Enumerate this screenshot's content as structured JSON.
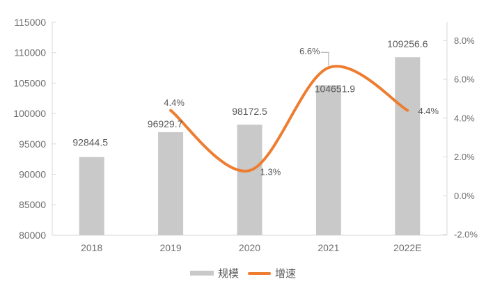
{
  "chart_data": {
    "type": "combo-bar-line",
    "categories": [
      "2018",
      "2019",
      "2020",
      "2021",
      "2022E"
    ],
    "series": [
      {
        "name": "规模",
        "type": "bar",
        "axis": "left",
        "values": [
          92844.5,
          96929.7,
          98172.5,
          104651.9,
          109256.6
        ],
        "labels": [
          "92844.5",
          "96929.7",
          "98172.5",
          "104651.9",
          "109256.6"
        ],
        "color": "#C9C9C9"
      },
      {
        "name": "增速",
        "type": "line",
        "smooth": true,
        "axis": "right",
        "values": [
          null,
          4.4,
          1.3,
          6.6,
          4.4
        ],
        "labels": [
          "",
          "4.4%",
          "1.3%",
          "6.6%",
          "4.4%"
        ],
        "color": "#ED7D31"
      }
    ],
    "left_axis": {
      "min": 80000,
      "max": 115000,
      "step": 5000,
      "tick_labels": [
        "80000",
        "85000",
        "90000",
        "95000",
        "100000",
        "105000",
        "110000",
        "115000"
      ]
    },
    "right_axis": {
      "min": -2,
      "max": 8,
      "step": 2,
      "tick_labels": [
        "-2.0%",
        "0.0%",
        "2.0%",
        "4.0%",
        "6.0%",
        "8.0%"
      ]
    },
    "grid": false,
    "legend_position": "bottom",
    "colors": {
      "axis_line": "#D9D9D9",
      "axis_text": "#6E6E6E",
      "data_text": "#595959",
      "leader_line": "#A6A6A6"
    }
  }
}
